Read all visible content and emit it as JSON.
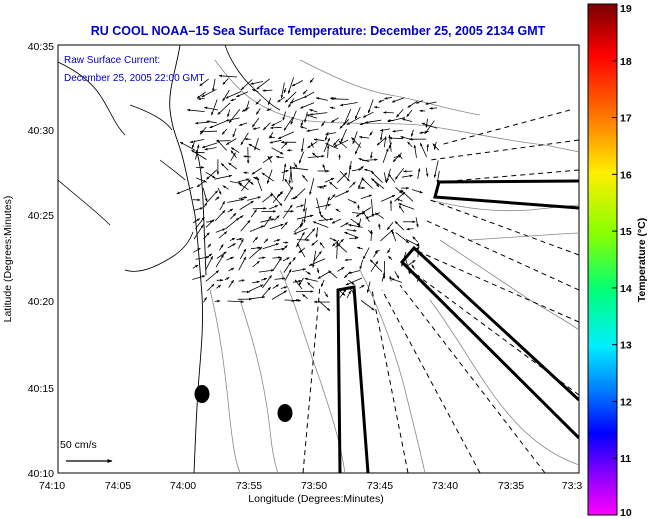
{
  "title": "RU COOL   NOAA–15  Sea Surface Temperature:  December 25, 2005 2134 GMT",
  "legend": {
    "line1": "Raw Surface Current:",
    "line2": "December 25, 2005 22:00 GMT"
  },
  "scale_label": "50 cm/s",
  "axes": {
    "xlabel": "Longitude (Degrees:Minutes)",
    "ylabel": "Latitude (Degrees:Minutes)",
    "xticks": [
      "74:10",
      "74:05",
      "74:00",
      "73:55",
      "73:50",
      "73:45",
      "73:40",
      "73:35",
      "73:3"
    ],
    "yticks": [
      "40:35",
      "40:30",
      "40:25",
      "40:20",
      "40:15",
      "40:10"
    ]
  },
  "colorbar": {
    "label": "Temperature (°C)",
    "ticks": [
      "19",
      "18",
      "17",
      "16",
      "15",
      "14",
      "13",
      "12",
      "11",
      "10"
    ],
    "colors": [
      "#8b0000",
      "#ff0000",
      "#ff8800",
      "#ffff00",
      "#88ff00",
      "#00ff66",
      "#00ffff",
      "#0088ff",
      "#0000ff",
      "#8800ff",
      "#ff00ff"
    ]
  }
}
